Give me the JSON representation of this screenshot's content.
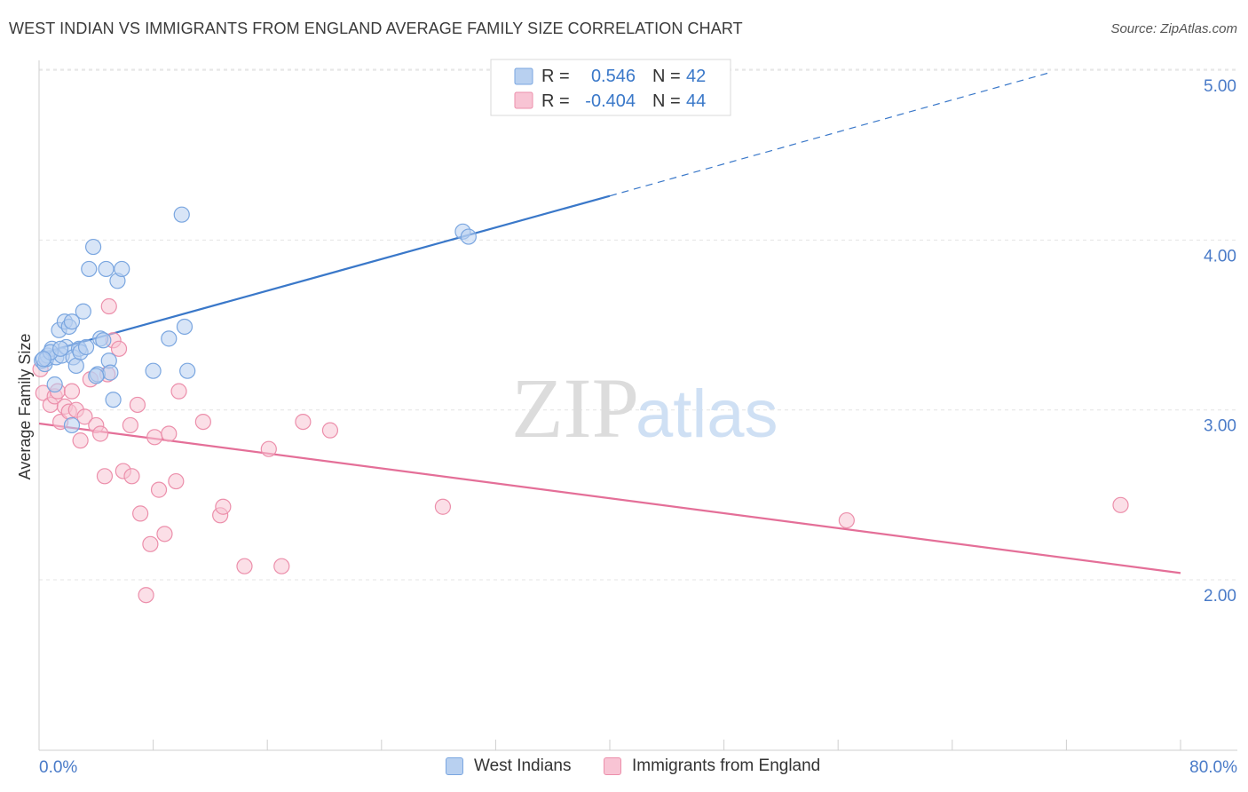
{
  "header": {
    "title": "WEST INDIAN VS IMMIGRANTS FROM ENGLAND AVERAGE FAMILY SIZE CORRELATION CHART",
    "source": "Source: ZipAtlas.com"
  },
  "watermark": {
    "zip": "ZIP",
    "atlas": "atlas"
  },
  "stats_legend": {
    "rows": [
      {
        "r_label": "R =",
        "r_value": "0.546",
        "n_label": "N =",
        "n_value": "42"
      },
      {
        "r_label": "R =",
        "r_value": "-0.404",
        "n_label": "N =",
        "n_value": "44"
      }
    ]
  },
  "colors": {
    "blue_stroke": "#7aa6e0",
    "blue_fill": "#b8d0f0",
    "blue_line": "#3a78c9",
    "pink_stroke": "#ec8fab",
    "pink_fill": "#f8c4d4",
    "pink_line": "#e46f98",
    "value_text": "#3a78c9",
    "grid": "#e4e4e4"
  },
  "chart_data": {
    "type": "scatter",
    "title": "WEST INDIAN VS IMMIGRANTS FROM ENGLAND AVERAGE FAMILY SIZE CORRELATION CHART",
    "xlabel": "",
    "ylabel": "Average Family Size",
    "xlim": [
      0,
      80
    ],
    "ylim": [
      1.0,
      5.1
    ],
    "x_tick_labels": [
      "0.0%",
      "80.0%"
    ],
    "y_ticks": [
      2.0,
      3.0,
      4.0,
      5.0
    ],
    "y_tick_labels": [
      "2.00",
      "3.00",
      "4.00",
      "5.00"
    ],
    "grid": true,
    "legend_position": "bottom",
    "series": [
      {
        "name": "West Indians",
        "r": 0.546,
        "n": 42,
        "trend": {
          "x": [
            0,
            40
          ],
          "y": [
            3.33,
            4.26
          ],
          "dashed_to": {
            "x": 71,
            "y": 4.99
          }
        },
        "points": [
          [
            0.2,
            3.29
          ],
          [
            0.4,
            3.27
          ],
          [
            0.6,
            3.32
          ],
          [
            0.5,
            3.3
          ],
          [
            0.9,
            3.36
          ],
          [
            1.2,
            3.31
          ],
          [
            1.1,
            3.15
          ],
          [
            1.4,
            3.47
          ],
          [
            1.6,
            3.32
          ],
          [
            1.8,
            3.52
          ],
          [
            1.9,
            3.37
          ],
          [
            2.1,
            3.49
          ],
          [
            2.3,
            3.52
          ],
          [
            2.4,
            3.31
          ],
          [
            2.6,
            3.26
          ],
          [
            2.8,
            3.36
          ],
          [
            2.9,
            3.34
          ],
          [
            3.1,
            3.58
          ],
          [
            3.3,
            3.37
          ],
          [
            3.5,
            3.83
          ],
          [
            3.8,
            3.96
          ],
          [
            4.1,
            3.21
          ],
          [
            4.3,
            3.42
          ],
          [
            4.5,
            3.41
          ],
          [
            4.7,
            3.83
          ],
          [
            4.9,
            3.29
          ],
          [
            5.0,
            3.22
          ],
          [
            5.2,
            3.06
          ],
          [
            5.5,
            3.76
          ],
          [
            5.8,
            3.83
          ],
          [
            2.3,
            2.91
          ],
          [
            8.0,
            3.23
          ],
          [
            9.1,
            3.42
          ],
          [
            10.0,
            4.15
          ],
          [
            10.2,
            3.49
          ],
          [
            10.4,
            3.23
          ],
          [
            29.7,
            4.05
          ],
          [
            30.1,
            4.02
          ],
          [
            0.8,
            3.34
          ],
          [
            1.5,
            3.36
          ],
          [
            4.0,
            3.2
          ],
          [
            0.3,
            3.3
          ]
        ]
      },
      {
        "name": "Immigrants from England",
        "r": -0.404,
        "n": 44,
        "trend": {
          "x": [
            0,
            80
          ],
          "y": [
            2.92,
            2.04
          ]
        },
        "points": [
          [
            0.1,
            3.24
          ],
          [
            0.3,
            3.1
          ],
          [
            0.8,
            3.03
          ],
          [
            1.1,
            3.08
          ],
          [
            1.3,
            3.11
          ],
          [
            1.5,
            2.93
          ],
          [
            1.8,
            3.02
          ],
          [
            2.1,
            2.99
          ],
          [
            2.3,
            3.11
          ],
          [
            2.6,
            3.0
          ],
          [
            2.9,
            2.82
          ],
          [
            3.2,
            2.96
          ],
          [
            3.6,
            3.18
          ],
          [
            4.0,
            2.91
          ],
          [
            4.3,
            2.86
          ],
          [
            4.6,
            2.61
          ],
          [
            4.9,
            3.61
          ],
          [
            5.2,
            3.41
          ],
          [
            5.6,
            3.36
          ],
          [
            5.9,
            2.64
          ],
          [
            6.4,
            2.91
          ],
          [
            6.5,
            2.61
          ],
          [
            6.9,
            3.03
          ],
          [
            7.1,
            2.39
          ],
          [
            7.5,
            1.91
          ],
          [
            7.8,
            2.21
          ],
          [
            8.1,
            2.84
          ],
          [
            8.4,
            2.53
          ],
          [
            8.8,
            2.27
          ],
          [
            9.1,
            2.86
          ],
          [
            9.6,
            2.58
          ],
          [
            9.8,
            3.11
          ],
          [
            11.5,
            2.93
          ],
          [
            12.7,
            2.38
          ],
          [
            12.9,
            2.43
          ],
          [
            14.4,
            2.08
          ],
          [
            16.1,
            2.77
          ],
          [
            17.0,
            2.08
          ],
          [
            18.5,
            2.93
          ],
          [
            20.4,
            2.88
          ],
          [
            28.3,
            2.43
          ],
          [
            56.6,
            2.35
          ],
          [
            75.8,
            2.44
          ],
          [
            4.8,
            3.21
          ]
        ]
      }
    ]
  },
  "bottom_legend": {
    "items": [
      {
        "label": "West Indians"
      },
      {
        "label": "Immigrants from England"
      }
    ]
  }
}
